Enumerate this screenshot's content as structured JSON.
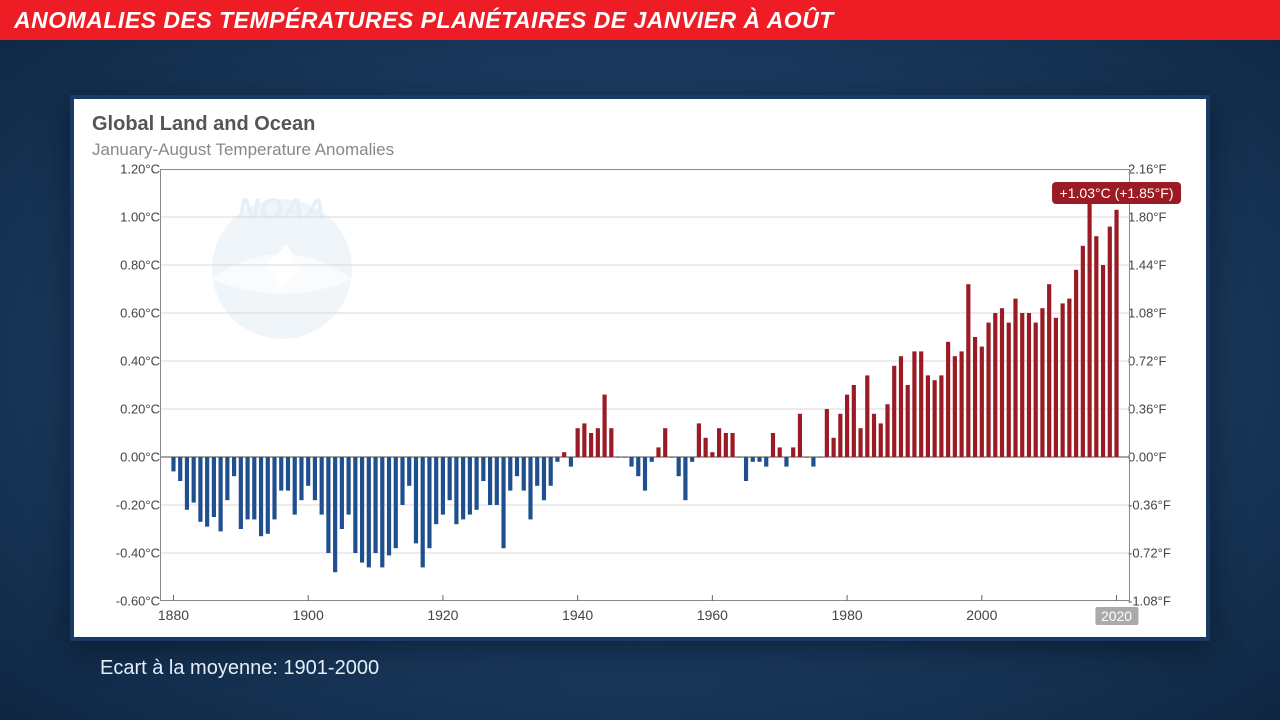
{
  "header": {
    "title": "ANOMALIES DES TEMPÉRATURES PLANÉTAIRES DE JANVIER À AOÛT",
    "bg_color": "#ee1c25",
    "text_color": "#ffffff"
  },
  "footer": {
    "text": "Ecart à la moyenne: 1901-2000"
  },
  "chart": {
    "type": "bar",
    "title": "Global Land and Ocean",
    "subtitle": "January-August Temperature Anomalies",
    "panel_bg": "#ffffff",
    "panel_border": "#1a3a66",
    "grid_color": "#d9d9d9",
    "baseline_color": "#888888",
    "positive_color": "#9a1b24",
    "negative_color": "#1f4f8f",
    "bar_width_ratio": 0.62,
    "x": {
      "min": 1878,
      "max": 2022,
      "ticks": [
        1880,
        1900,
        1920,
        1940,
        1960,
        1980,
        2000,
        2020
      ],
      "highlight_tick": 2020
    },
    "y_left": {
      "min": -0.6,
      "max": 1.2,
      "step": 0.2,
      "unit": "°C",
      "ticks": [
        -0.6,
        -0.4,
        -0.2,
        0.0,
        0.2,
        0.4,
        0.6,
        0.8,
        1.0,
        1.2
      ]
    },
    "y_right": {
      "unit": "°F",
      "ticks": [
        -1.08,
        -0.72,
        -0.36,
        0.0,
        0.36,
        0.72,
        1.08,
        1.44,
        1.8,
        2.16
      ]
    },
    "callout": {
      "year": 2020,
      "text": "+1.03°C (+1.85°F)",
      "bg": "#9a1b24",
      "text_color": "#ffffff"
    },
    "logo": {
      "text": "NOAA",
      "color": "#6fa8d8"
    },
    "series": {
      "start_year": 1880,
      "values": [
        -0.06,
        -0.1,
        -0.22,
        -0.19,
        -0.27,
        -0.29,
        -0.25,
        -0.31,
        -0.18,
        -0.08,
        -0.3,
        -0.26,
        -0.26,
        -0.33,
        -0.32,
        -0.26,
        -0.14,
        -0.14,
        -0.24,
        -0.18,
        -0.12,
        -0.18,
        -0.24,
        -0.4,
        -0.48,
        -0.3,
        -0.24,
        -0.4,
        -0.44,
        -0.46,
        -0.4,
        -0.46,
        -0.41,
        -0.38,
        -0.2,
        -0.12,
        -0.36,
        -0.46,
        -0.38,
        -0.28,
        -0.24,
        -0.18,
        -0.28,
        -0.26,
        -0.24,
        -0.22,
        -0.1,
        -0.2,
        -0.2,
        -0.38,
        -0.14,
        -0.08,
        -0.14,
        -0.26,
        -0.12,
        -0.18,
        -0.12,
        -0.02,
        0.02,
        -0.04,
        0.12,
        0.14,
        0.1,
        0.12,
        0.26,
        0.12,
        0.0,
        0.0,
        -0.04,
        -0.08,
        -0.14,
        -0.02,
        0.04,
        0.12,
        0.0,
        -0.08,
        -0.18,
        -0.02,
        0.14,
        0.08,
        0.02,
        0.12,
        0.1,
        0.1,
        0.0,
        -0.1,
        -0.02,
        -0.02,
        -0.04,
        0.1,
        0.04,
        -0.04,
        0.04,
        0.18,
        0.0,
        -0.04,
        0.0,
        0.2,
        0.08,
        0.18,
        0.26,
        0.3,
        0.12,
        0.34,
        0.18,
        0.14,
        0.22,
        0.38,
        0.42,
        0.3,
        0.44,
        0.44,
        0.34,
        0.32,
        0.34,
        0.48,
        0.42,
        0.44,
        0.72,
        0.5,
        0.46,
        0.56,
        0.6,
        0.62,
        0.56,
        0.66,
        0.6,
        0.6,
        0.56,
        0.62,
        0.72,
        0.58,
        0.64,
        0.66,
        0.78,
        0.88,
        1.08,
        0.92,
        0.8,
        0.96,
        1.03
      ]
    }
  }
}
